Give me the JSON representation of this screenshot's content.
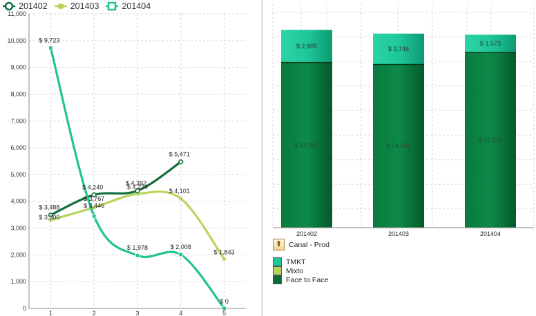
{
  "line_chart": {
    "legend": [
      {
        "label": "201402",
        "color": "#0f6e3a",
        "icon": "circle-marker-icon"
      },
      {
        "label": "201403",
        "color": "#b8d45e",
        "icon": "diamond-marker-icon"
      },
      {
        "label": "201404",
        "color": "#21c393",
        "icon": "square-marker-icon"
      }
    ]
  },
  "bar_chart": {
    "legend_title": "Canal - Prod",
    "legend": [
      {
        "label": "TMKT",
        "color": "#1ec89a"
      },
      {
        "label": "Mixto",
        "color": "#b8d45e"
      },
      {
        "label": "Face to Face",
        "color": "#0a6a38"
      }
    ]
  },
  "chart_data": [
    {
      "type": "line",
      "x": [
        1,
        2,
        3,
        4,
        5
      ],
      "xlabel": "",
      "ylabel": "",
      "ylim": [
        0,
        11000
      ],
      "yticks": [
        "0",
        "1,000",
        "2,000",
        "3,000",
        "4,000",
        "5,000",
        "6,000",
        "7,000",
        "8,000",
        "9,000",
        "10,000",
        "11,000"
      ],
      "xticks": [
        "1",
        "2",
        "3",
        "4",
        "5"
      ],
      "grid": true,
      "legend": "top-left",
      "series": [
        {
          "name": "201402",
          "color": "#0f6e3a",
          "x": [
            1,
            2,
            3,
            4
          ],
          "values": [
            3488,
            4240,
            4392,
            5471
          ],
          "labels": [
            "$ 3,488",
            "$ 4,240",
            "$ 4,392",
            "$ 5,471"
          ]
        },
        {
          "name": "201403",
          "color": "#b8d45e",
          "x": [
            1,
            2,
            3,
            4,
            5
          ],
          "values": [
            3300,
            3767,
            4274,
            4101,
            1843
          ],
          "labels": [
            "$ 3,300",
            "$ 3,767",
            "$ 4,274",
            "$ 4,101",
            "$ 1,843"
          ]
        },
        {
          "name": "201404",
          "color": "#21c393",
          "x": [
            1,
            2,
            3,
            4,
            5
          ],
          "values": [
            9723,
            3446,
            1978,
            2008,
            0
          ],
          "labels": [
            "$ 9,723",
            "$ 3,446",
            "$ 1,978",
            "$ 2,008",
            "$ 0"
          ]
        }
      ]
    },
    {
      "type": "bar",
      "stacked": true,
      "categories": [
        "201402",
        "201403",
        "201404"
      ],
      "grid": true,
      "legend": "bottom-left",
      "series": [
        {
          "name": "Face to Face",
          "color": "#0a6a38",
          "values": [
            14681,
            14508,
            15578
          ],
          "labels": [
            "$ 14,681",
            "$ 14,508",
            "$ 15,578"
          ]
        },
        {
          "name": "TMKT",
          "color": "#1ec89a",
          "values": [
            2905,
            2746,
            1573
          ],
          "labels": [
            "$ 2,905",
            "$ 2,746",
            "$ 1,573"
          ]
        }
      ]
    }
  ]
}
